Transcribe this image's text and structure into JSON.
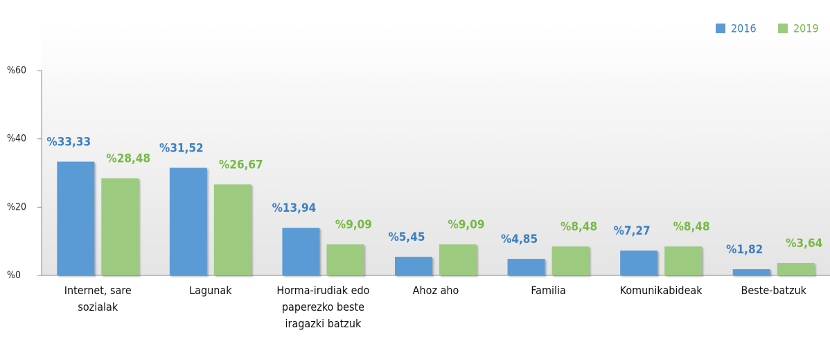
{
  "chart_data": {
    "type": "bar",
    "categories": [
      "Internet, sare sozialak",
      "Lagunak",
      "Horma-irudiak edo paperezko beste iragazki batzuk",
      "Ahoz aho",
      "Familia",
      "Komunikabideak",
      "Beste-batzuk"
    ],
    "series": [
      {
        "name": "2016",
        "color": "#5b9bd5",
        "values": [
          33.33,
          31.52,
          13.94,
          5.45,
          4.85,
          7.27,
          1.82
        ],
        "value_labels": [
          "%33,33",
          "%31,52",
          "%13,94",
          "%5,45",
          "%4,85",
          "%7,27",
          "%1,82"
        ]
      },
      {
        "name": "2019",
        "color": "#9ccb80",
        "values": [
          28.48,
          26.67,
          9.09,
          9.09,
          8.48,
          8.48,
          3.64
        ],
        "value_labels": [
          "%28,48",
          "%26,67",
          "%9,09",
          "%9,09",
          "%8,48",
          "%8,48",
          "%3,64"
        ]
      }
    ],
    "ylim": [
      0,
      60
    ],
    "yticks": [
      {
        "value": 0,
        "label": "%0"
      },
      {
        "value": 20,
        "label": "%20"
      },
      {
        "value": 40,
        "label": "%40"
      },
      {
        "value": 60,
        "label": "%60"
      }
    ],
    "legend": "top-right"
  }
}
